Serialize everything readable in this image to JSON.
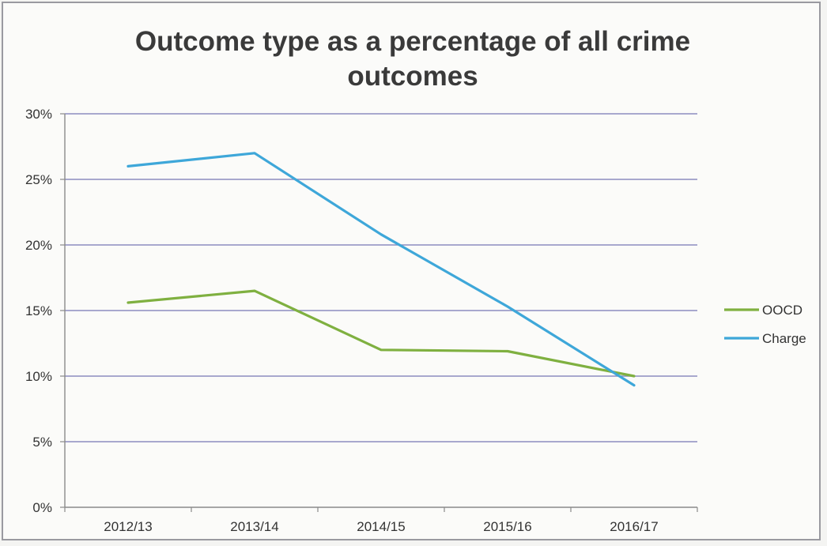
{
  "chart_data": {
    "type": "line",
    "title": "Outcome type as a percentage of all crime outcomes",
    "title_lines": [
      "Outcome type as a percentage of all crime",
      "outcomes"
    ],
    "categories": [
      "2012/13",
      "2013/14",
      "2014/15",
      "2015/16",
      "2016/17"
    ],
    "y_ticks": [
      "0%",
      "5%",
      "10%",
      "15%",
      "20%",
      "25%",
      "30%"
    ],
    "ylim": [
      0,
      30
    ],
    "series": [
      {
        "name": "OOCD",
        "values": [
          15.6,
          16.5,
          12.0,
          11.9,
          10.0
        ],
        "color": "#7fb040"
      },
      {
        "name": "Charge",
        "values": [
          26.0,
          27.0,
          20.8,
          15.3,
          9.3
        ],
        "color": "#3ea7d9"
      }
    ],
    "grid": true,
    "gridline_color": "#8c8cc0",
    "legend": "right"
  }
}
